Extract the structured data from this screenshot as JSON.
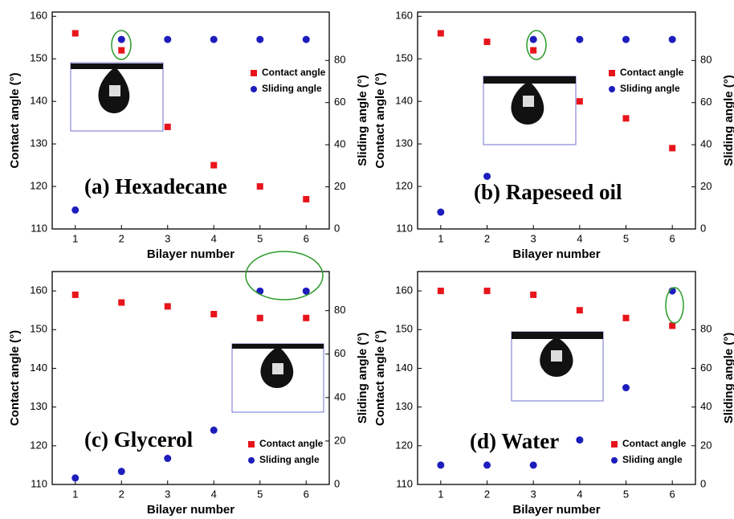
{
  "chart_data": [
    {
      "type": "scatter",
      "title": "(a) Hexadecane",
      "xlabel": "Bilayer number",
      "ylabel": "Contact angle (°)",
      "y2label": "Sliding angle (°)",
      "x": [
        1,
        2,
        3,
        4,
        5,
        6
      ],
      "xlim": [
        0.5,
        6.5
      ],
      "xticks": [
        1,
        2,
        3,
        4,
        5,
        6
      ],
      "ylim": [
        110,
        161
      ],
      "yticks": [
        110,
        120,
        130,
        140,
        150,
        160
      ],
      "y2lim": [
        0,
        103
      ],
      "y2ticks": [
        0,
        20,
        40,
        60,
        80
      ],
      "series": [
        {
          "name": "Contact angle",
          "color": "#e8141b",
          "marker": "square",
          "values": [
            156,
            152,
            134,
            125,
            120,
            117
          ]
        },
        {
          "name": "Sliding angle",
          "color": "#1d1dbd",
          "marker": "circle",
          "axis": "y2",
          "values": [
            9,
            90,
            90,
            90,
            90,
            90
          ]
        }
      ]
    },
    {
      "type": "scatter",
      "title": "(b) Rapeseed oil",
      "xlabel": "Bilayer number",
      "ylabel": "Contact angle (°)",
      "y2label": "Sliding angle (°)",
      "x": [
        1,
        2,
        3,
        4,
        5,
        6
      ],
      "xlim": [
        0.5,
        6.5
      ],
      "xticks": [
        1,
        2,
        3,
        4,
        5,
        6
      ],
      "ylim": [
        110,
        161
      ],
      "yticks": [
        110,
        120,
        130,
        140,
        150,
        160
      ],
      "y2lim": [
        0,
        103
      ],
      "y2ticks": [
        0,
        20,
        40,
        60,
        80
      ],
      "series": [
        {
          "name": "Contact angle",
          "color": "#e8141b",
          "marker": "square",
          "values": [
            156,
            154,
            152,
            140,
            136,
            129
          ]
        },
        {
          "name": "Sliding angle",
          "color": "#1d1dbd",
          "marker": "circle",
          "axis": "y2",
          "values": [
            8,
            25,
            90,
            90,
            90,
            90
          ]
        }
      ]
    },
    {
      "type": "scatter",
      "title": "(c) Glycerol",
      "xlabel": "Bilayer number",
      "ylabel": "Contact angle (°)",
      "y2label": "Sliding angle (°)",
      "x": [
        1,
        2,
        3,
        4,
        5,
        6
      ],
      "xlim": [
        0.5,
        6.5
      ],
      "xticks": [
        1,
        2,
        3,
        4,
        5,
        6
      ],
      "ylim": [
        110,
        165
      ],
      "yticks": [
        110,
        120,
        130,
        140,
        150,
        160
      ],
      "y2lim": [
        0,
        98
      ],
      "y2ticks": [
        0,
        20,
        40,
        60,
        80
      ],
      "series": [
        {
          "name": "Contact angle",
          "color": "#e8141b",
          "marker": "square",
          "values": [
            159,
            157,
            156,
            154,
            153,
            153
          ]
        },
        {
          "name": "Sliding angle",
          "color": "#1d1dbd",
          "marker": "circle",
          "axis": "y2",
          "values": [
            3,
            6,
            12,
            25,
            89,
            89
          ]
        }
      ]
    },
    {
      "type": "scatter",
      "title": "(d) Water",
      "xlabel": "Bilayer number",
      "ylabel": "Contact angle (°)",
      "y2label": "Sliding angle (°)",
      "x": [
        1,
        2,
        3,
        4,
        5,
        6
      ],
      "xlim": [
        0.5,
        6.5
      ],
      "xticks": [
        1,
        2,
        3,
        4,
        5,
        6
      ],
      "ylim": [
        110,
        165
      ],
      "yticks": [
        110,
        120,
        130,
        140,
        150,
        160
      ],
      "y2lim": [
        0,
        110
      ],
      "y2ticks": [
        0,
        20,
        40,
        60,
        80
      ],
      "series": [
        {
          "name": "Contact angle",
          "color": "#e8141b",
          "marker": "square",
          "values": [
            160,
            160,
            159,
            155,
            153,
            151
          ]
        },
        {
          "name": "Sliding angle",
          "color": "#1d1dbd",
          "marker": "circle",
          "axis": "y2",
          "values": [
            10,
            10,
            10,
            23,
            50,
            100
          ]
        }
      ]
    }
  ]
}
